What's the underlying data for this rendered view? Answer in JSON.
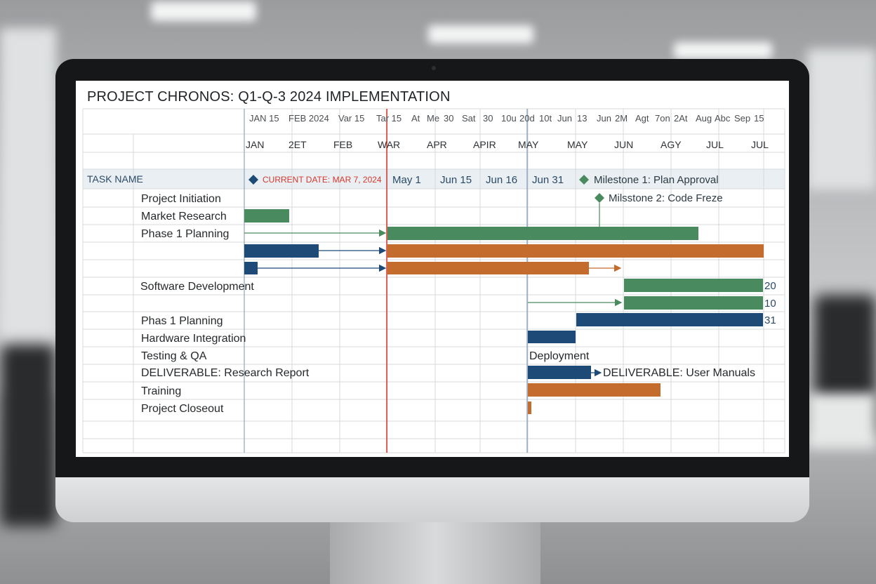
{
  "title": "PROJECT CHRONOS: Q1-Q-3 2024 IMPLEMENTATION",
  "header_dates": [
    "JAN 15",
    "FEB 2024",
    "Var 15",
    "Tar 15",
    "At",
    "Me",
    "30",
    "Sat",
    "30",
    "10u",
    "20d",
    "10t",
    "Jun",
    "13",
    "Jun",
    "2M",
    "Agt",
    "7on",
    "2At",
    "Aug",
    "Abc",
    "Sep",
    "15"
  ],
  "months": [
    "JAN",
    "2ET",
    "FEB",
    "WAR",
    "APR",
    "APIR",
    "MAY",
    "MAY",
    "JUN",
    "AGY",
    "JUL",
    "JUL"
  ],
  "task_name_header": "TASK NAME",
  "current_date": "CURRENT DATE: MAR 7, 2024",
  "columns_header": [
    "May 1",
    "Jun 15",
    "Jun 16",
    "Jun 31"
  ],
  "milestones": [
    "Milestone 1: Plan Approval",
    "Milsstone 2: Code Freze"
  ],
  "tasks": [
    "Project Initiation",
    "Market Research",
    "Phase 1 Planning",
    "Software Development",
    "Phas 1 Planning",
    "Hardware Integration",
    "Testing & QA",
    "DELIVERABLE: Research Report",
    "Training",
    "Project Closeout"
  ],
  "bar_labels": {
    "deployment": "Deployment",
    "deliverable_manuals": "DELIVERABLE: User Manuals",
    "value_20": "20",
    "value_10": "10",
    "value_31": "31"
  },
  "colors": {
    "green": "#4a8a5f",
    "blue": "#1d4a77",
    "orange": "#c46b2e",
    "current_line": "#d4382c",
    "header_bg": "#e9eff3"
  }
}
